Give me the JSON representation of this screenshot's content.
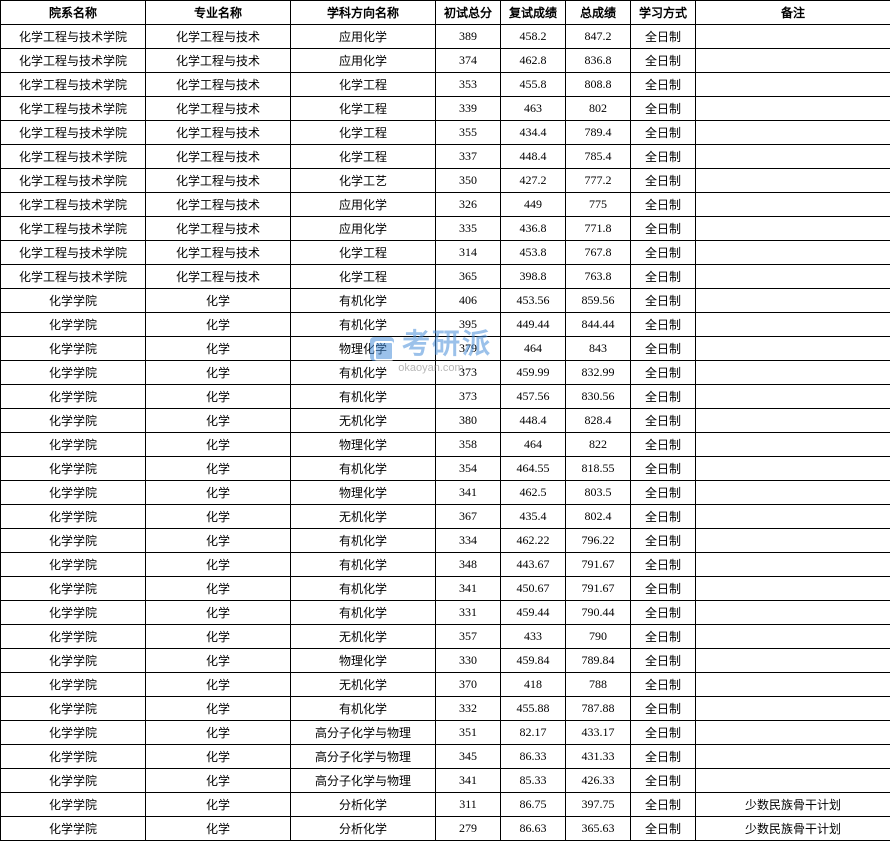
{
  "headers": {
    "dept": "院系名称",
    "major": "专业名称",
    "direction": "学科方向名称",
    "score1": "初试总分",
    "score2": "复试成绩",
    "total": "总成绩",
    "mode": "学习方式",
    "remark": "备注"
  },
  "watermark": {
    "main": "考研派",
    "sub": "okaoyan.com"
  },
  "mode_fulltime": "全日制",
  "remark_minority": "少数民族骨干计划",
  "rows": [
    {
      "dept": "化学工程与技术学院",
      "major": "化学工程与技术",
      "direction": "应用化学",
      "s1": "389",
      "s2": "458.2",
      "total": "847.2",
      "mode": "全日制",
      "remark": ""
    },
    {
      "dept": "化学工程与技术学院",
      "major": "化学工程与技术",
      "direction": "应用化学",
      "s1": "374",
      "s2": "462.8",
      "total": "836.8",
      "mode": "全日制",
      "remark": ""
    },
    {
      "dept": "化学工程与技术学院",
      "major": "化学工程与技术",
      "direction": "化学工程",
      "s1": "353",
      "s2": "455.8",
      "total": "808.8",
      "mode": "全日制",
      "remark": ""
    },
    {
      "dept": "化学工程与技术学院",
      "major": "化学工程与技术",
      "direction": "化学工程",
      "s1": "339",
      "s2": "463",
      "total": "802",
      "mode": "全日制",
      "remark": ""
    },
    {
      "dept": "化学工程与技术学院",
      "major": "化学工程与技术",
      "direction": "化学工程",
      "s1": "355",
      "s2": "434.4",
      "total": "789.4",
      "mode": "全日制",
      "remark": ""
    },
    {
      "dept": "化学工程与技术学院",
      "major": "化学工程与技术",
      "direction": "化学工程",
      "s1": "337",
      "s2": "448.4",
      "total": "785.4",
      "mode": "全日制",
      "remark": ""
    },
    {
      "dept": "化学工程与技术学院",
      "major": "化学工程与技术",
      "direction": "化学工艺",
      "s1": "350",
      "s2": "427.2",
      "total": "777.2",
      "mode": "全日制",
      "remark": ""
    },
    {
      "dept": "化学工程与技术学院",
      "major": "化学工程与技术",
      "direction": "应用化学",
      "s1": "326",
      "s2": "449",
      "total": "775",
      "mode": "全日制",
      "remark": ""
    },
    {
      "dept": "化学工程与技术学院",
      "major": "化学工程与技术",
      "direction": "应用化学",
      "s1": "335",
      "s2": "436.8",
      "total": "771.8",
      "mode": "全日制",
      "remark": ""
    },
    {
      "dept": "化学工程与技术学院",
      "major": "化学工程与技术",
      "direction": "化学工程",
      "s1": "314",
      "s2": "453.8",
      "total": "767.8",
      "mode": "全日制",
      "remark": ""
    },
    {
      "dept": "化学工程与技术学院",
      "major": "化学工程与技术",
      "direction": "化学工程",
      "s1": "365",
      "s2": "398.8",
      "total": "763.8",
      "mode": "全日制",
      "remark": ""
    },
    {
      "dept": "化学学院",
      "major": "化学",
      "direction": "有机化学",
      "s1": "406",
      "s2": "453.56",
      "total": "859.56",
      "mode": "全日制",
      "remark": ""
    },
    {
      "dept": "化学学院",
      "major": "化学",
      "direction": "有机化学",
      "s1": "395",
      "s2": "449.44",
      "total": "844.44",
      "mode": "全日制",
      "remark": ""
    },
    {
      "dept": "化学学院",
      "major": "化学",
      "direction": "物理化学",
      "s1": "379",
      "s2": "464",
      "total": "843",
      "mode": "全日制",
      "remark": ""
    },
    {
      "dept": "化学学院",
      "major": "化学",
      "direction": "有机化学",
      "s1": "373",
      "s2": "459.99",
      "total": "832.99",
      "mode": "全日制",
      "remark": ""
    },
    {
      "dept": "化学学院",
      "major": "化学",
      "direction": "有机化学",
      "s1": "373",
      "s2": "457.56",
      "total": "830.56",
      "mode": "全日制",
      "remark": ""
    },
    {
      "dept": "化学学院",
      "major": "化学",
      "direction": "无机化学",
      "s1": "380",
      "s2": "448.4",
      "total": "828.4",
      "mode": "全日制",
      "remark": ""
    },
    {
      "dept": "化学学院",
      "major": "化学",
      "direction": "物理化学",
      "s1": "358",
      "s2": "464",
      "total": "822",
      "mode": "全日制",
      "remark": ""
    },
    {
      "dept": "化学学院",
      "major": "化学",
      "direction": "有机化学",
      "s1": "354",
      "s2": "464.55",
      "total": "818.55",
      "mode": "全日制",
      "remark": ""
    },
    {
      "dept": "化学学院",
      "major": "化学",
      "direction": "物理化学",
      "s1": "341",
      "s2": "462.5",
      "total": "803.5",
      "mode": "全日制",
      "remark": ""
    },
    {
      "dept": "化学学院",
      "major": "化学",
      "direction": "无机化学",
      "s1": "367",
      "s2": "435.4",
      "total": "802.4",
      "mode": "全日制",
      "remark": ""
    },
    {
      "dept": "化学学院",
      "major": "化学",
      "direction": "有机化学",
      "s1": "334",
      "s2": "462.22",
      "total": "796.22",
      "mode": "全日制",
      "remark": ""
    },
    {
      "dept": "化学学院",
      "major": "化学",
      "direction": "有机化学",
      "s1": "348",
      "s2": "443.67",
      "total": "791.67",
      "mode": "全日制",
      "remark": ""
    },
    {
      "dept": "化学学院",
      "major": "化学",
      "direction": "有机化学",
      "s1": "341",
      "s2": "450.67",
      "total": "791.67",
      "mode": "全日制",
      "remark": ""
    },
    {
      "dept": "化学学院",
      "major": "化学",
      "direction": "有机化学",
      "s1": "331",
      "s2": "459.44",
      "total": "790.44",
      "mode": "全日制",
      "remark": ""
    },
    {
      "dept": "化学学院",
      "major": "化学",
      "direction": "无机化学",
      "s1": "357",
      "s2": "433",
      "total": "790",
      "mode": "全日制",
      "remark": ""
    },
    {
      "dept": "化学学院",
      "major": "化学",
      "direction": "物理化学",
      "s1": "330",
      "s2": "459.84",
      "total": "789.84",
      "mode": "全日制",
      "remark": ""
    },
    {
      "dept": "化学学院",
      "major": "化学",
      "direction": "无机化学",
      "s1": "370",
      "s2": "418",
      "total": "788",
      "mode": "全日制",
      "remark": ""
    },
    {
      "dept": "化学学院",
      "major": "化学",
      "direction": "有机化学",
      "s1": "332",
      "s2": "455.88",
      "total": "787.88",
      "mode": "全日制",
      "remark": ""
    },
    {
      "dept": "化学学院",
      "major": "化学",
      "direction": "高分子化学与物理",
      "s1": "351",
      "s2": "82.17",
      "total": "433.17",
      "mode": "全日制",
      "remark": ""
    },
    {
      "dept": "化学学院",
      "major": "化学",
      "direction": "高分子化学与物理",
      "s1": "345",
      "s2": "86.33",
      "total": "431.33",
      "mode": "全日制",
      "remark": ""
    },
    {
      "dept": "化学学院",
      "major": "化学",
      "direction": "高分子化学与物理",
      "s1": "341",
      "s2": "85.33",
      "total": "426.33",
      "mode": "全日制",
      "remark": ""
    },
    {
      "dept": "化学学院",
      "major": "化学",
      "direction": "分析化学",
      "s1": "311",
      "s2": "86.75",
      "total": "397.75",
      "mode": "全日制",
      "remark": "少数民族骨干计划"
    },
    {
      "dept": "化学学院",
      "major": "化学",
      "direction": "分析化学",
      "s1": "279",
      "s2": "86.63",
      "total": "365.63",
      "mode": "全日制",
      "remark": "少数民族骨干计划"
    }
  ]
}
